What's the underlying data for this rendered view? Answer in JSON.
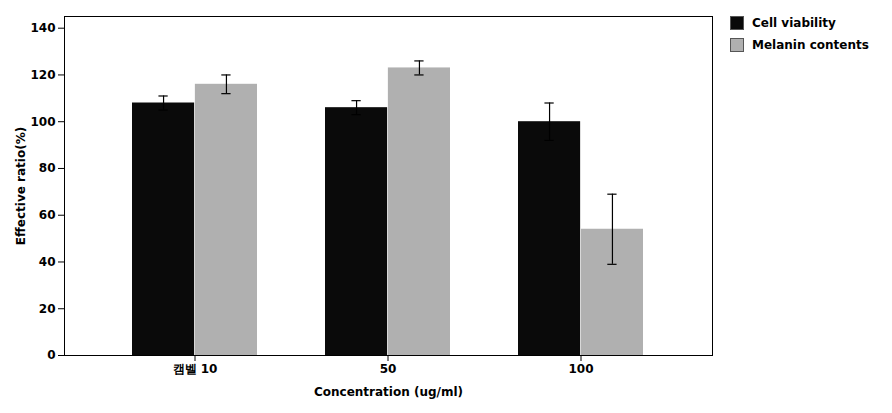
{
  "chart_data": {
    "type": "bar",
    "categories": [
      "캠벨 10",
      "50",
      "100"
    ],
    "series": [
      {
        "name": "Cell viability",
        "color": "#0a0a0a",
        "values": [
          108,
          106,
          100
        ],
        "errors": [
          3,
          3,
          8
        ]
      },
      {
        "name": "Melanin contents",
        "color": "#b0b0b0",
        "values": [
          116,
          123,
          54
        ],
        "errors": [
          4,
          3,
          15
        ]
      }
    ],
    "xlabel": "Concentration (ug/ml)",
    "ylabel": "Effective ratio(%)",
    "ylim": [
      0,
      145
    ],
    "yticks": [
      0,
      20,
      40,
      60,
      80,
      100,
      120,
      140
    ],
    "grid": false,
    "legend": "right"
  }
}
